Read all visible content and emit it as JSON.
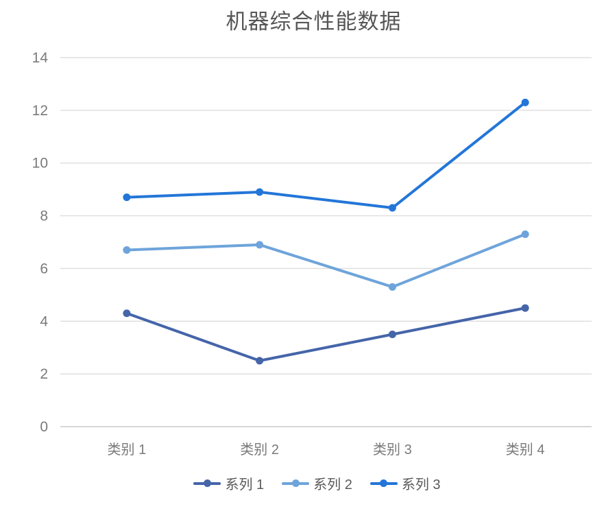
{
  "chart_data": {
    "type": "line",
    "title": "机器综合性能数据",
    "categories": [
      "类别 1",
      "类别 2",
      "类别 3",
      "类别 4"
    ],
    "series": [
      {
        "name": "系列 1",
        "values": [
          4.3,
          2.5,
          3.5,
          4.5
        ],
        "color": "#4565A9"
      },
      {
        "name": "系列 2",
        "values": [
          6.7,
          6.9,
          5.3,
          7.3
        ],
        "color": "#6EA4DB"
      },
      {
        "name": "系列 3",
        "values": [
          8.7,
          8.9,
          8.3,
          12.3
        ],
        "color": "#2376D8"
      }
    ],
    "ylim": [
      0,
      14
    ],
    "yticks": [
      0,
      2,
      4,
      6,
      8,
      10,
      12,
      14
    ],
    "grid": true,
    "legend_position": "bottom",
    "marker": "circle",
    "styles": {
      "grid_color": "#DDDDDD",
      "zero_line_color": "#D6D6D6",
      "tick_label_color": "#7A7A7A",
      "title_color": "#565656",
      "legend_text_color": "#595959",
      "background": "#FFFFFF"
    }
  }
}
